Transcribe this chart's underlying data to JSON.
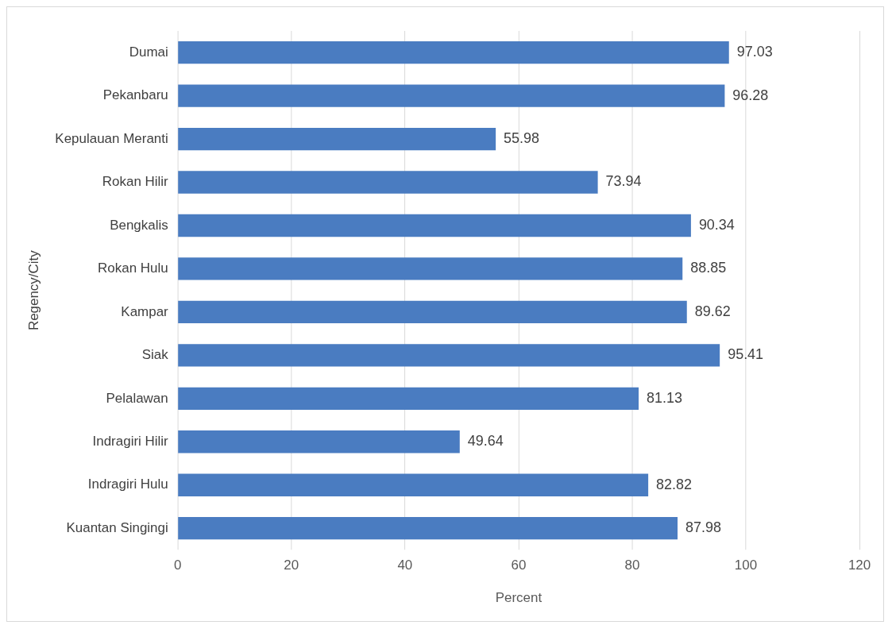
{
  "chart_data": {
    "type": "bar",
    "orientation": "horizontal",
    "xlabel": "Percent",
    "ylabel": "Regency/City",
    "categories": [
      "Dumai",
      "Pekanbaru",
      "Kepulauan Meranti",
      "Rokan Hilir",
      "Bengkalis",
      "Rokan Hulu",
      "Kampar",
      "Siak",
      "Pelalawan",
      "Indragiri Hilir",
      "Indragiri Hulu",
      "Kuantan Singingi"
    ],
    "values": [
      97.03,
      96.28,
      55.98,
      73.94,
      90.34,
      88.85,
      89.62,
      95.41,
      81.13,
      49.64,
      82.82,
      87.98
    ],
    "color": "#4a7cc1",
    "xlim": [
      0,
      120
    ],
    "xticks": [
      0,
      20,
      40,
      60,
      80,
      100,
      120
    ],
    "grid": "x",
    "data_labels": true,
    "legend": false
  }
}
